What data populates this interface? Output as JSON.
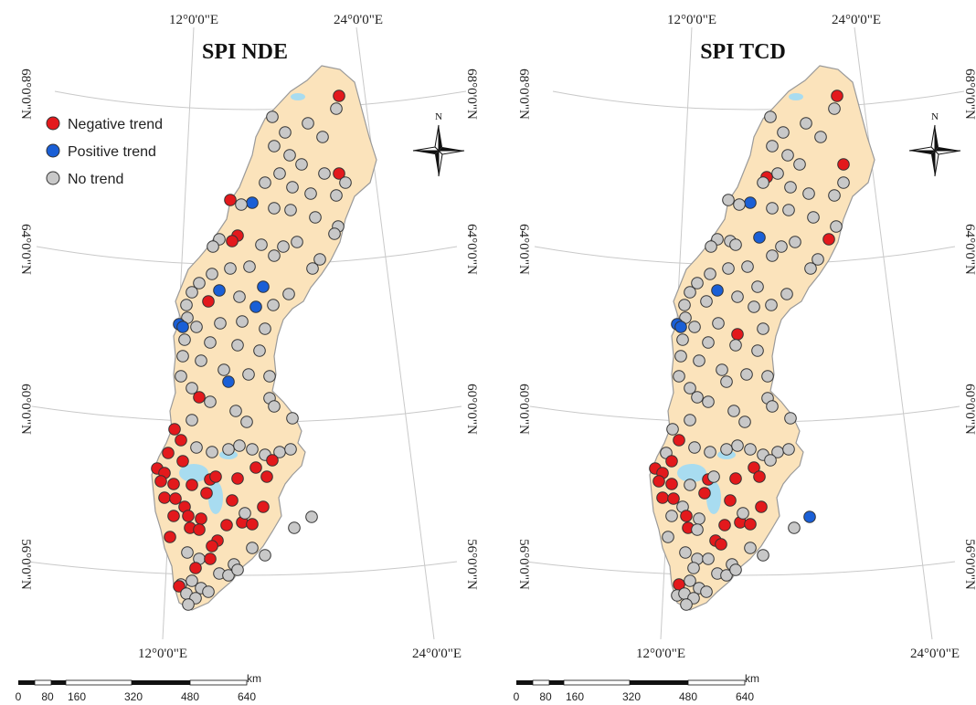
{
  "colors": {
    "land": "#fbe3bb",
    "land_stroke": "#9a9a9a",
    "water": "#a8dcf0",
    "graticule": "#c9c9c9",
    "negative": "#e3191c",
    "positive": "#1a5fd6",
    "none": "#c8c8c8"
  },
  "maps": [
    {
      "title": "SPI NDE",
      "top_labels": [
        "12°0'0\"E",
        "24°0'0\"E"
      ],
      "bottom_labels": [
        "12°0'0\"E",
        "24°0'0\"E"
      ],
      "left_labels": [
        "68°0'0\"N",
        "64°0'0\"N",
        "60°0'0\"N",
        "56°0'0\"N"
      ],
      "right_labels": [
        "68°0'0\"N",
        "64°0'0\"N",
        "60°0'0\"N",
        "56°0'0\"N"
      ],
      "legend": [
        {
          "label": "Negative trend",
          "kind": "negative"
        },
        {
          "label": "Positive trend",
          "kind": "positive"
        },
        {
          "label": "No trend",
          "kind": "none"
        }
      ],
      "north_label": "N",
      "scale": {
        "unit": "km",
        "ticks": [
          "0",
          "80",
          "160",
          "320",
          "480",
          "640"
        ]
      }
    },
    {
      "title": "SPI TCD",
      "top_labels": [
        "12°0'0\"E",
        "24°0'0\"E"
      ],
      "bottom_labels": [
        "12°0'0\"E",
        "24°0'0\"E"
      ],
      "left_labels": [
        "68°0'0\"N",
        "64°0'0\"N",
        "60°0'0\"N",
        "56°0'0\"N"
      ],
      "right_labels": [
        "68°0'0\"N",
        "64°0'0\"N",
        "60°0'0\"N",
        "56°0'0\"N"
      ],
      "north_label": "N",
      "scale": {
        "unit": "km",
        "ticks": [
          "0",
          "80",
          "160",
          "320",
          "480",
          "640"
        ]
      }
    }
  ]
}
